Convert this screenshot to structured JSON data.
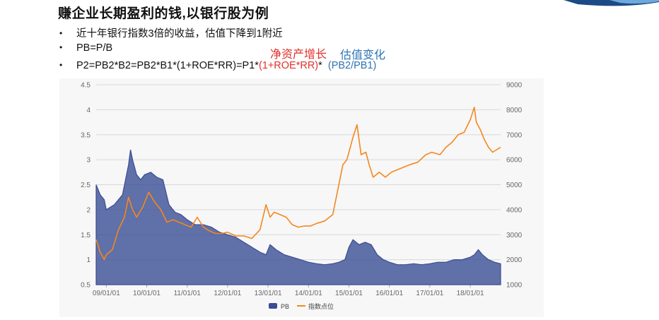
{
  "slide": {
    "title": "赚企业长期盈利的钱,以银行股为例",
    "bullet_symbol": "•",
    "bullets": [
      "近十年银行指数3倍的收益，估值下降到1附近",
      "PB=P/B"
    ],
    "formula": {
      "prefix": "P2=PB2*B2=PB2*B1*(1+ROE*RR)=P1*",
      "growth_term": "(1+ROE*RR)",
      "star": "*",
      "valuation_term": "(PB2/PB1)"
    },
    "annotation_growth": "净资产增长",
    "annotation_valuation": "估值变化"
  },
  "colors": {
    "pb_area": "#3a4d94",
    "index_line": "#f5871f",
    "grid": "#d8d8d8",
    "panel_bg": "#f7f7f7",
    "red_text": "#e0312c",
    "blue_text": "#2e75b6"
  },
  "chart_data": {
    "type": "area",
    "title": "",
    "grid": true,
    "legend_position": "bottom-center",
    "x_ticks": [
      "09/01/01",
      "10/01/01",
      "11/01/01",
      "12/01/01",
      "13/01/01",
      "14/01/01",
      "15/01/01",
      "16/01/01",
      "17/01/01",
      "18/01/01"
    ],
    "x_range": [
      2008.75,
      2018.75
    ],
    "y_left": {
      "ticks": [
        "0.5",
        "1",
        "1.5",
        "2",
        "2.5",
        "3",
        "3.5",
        "4",
        "4.5"
      ],
      "range": [
        0.5,
        4.5
      ]
    },
    "y_right": {
      "ticks": [
        "1000",
        "2000",
        "3000",
        "4000",
        "5000",
        "6000",
        "7000",
        "8000",
        "9000"
      ],
      "range": [
        1000,
        9000
      ]
    },
    "series": [
      {
        "name": "PB",
        "type": "area",
        "axis": "left",
        "x": [
          2008.75,
          2008.85,
          2008.95,
          2009.0,
          2009.2,
          2009.4,
          2009.55,
          2009.6,
          2009.65,
          2009.75,
          2009.85,
          2009.95,
          2010.1,
          2010.25,
          2010.4,
          2010.55,
          2010.7,
          2010.85,
          2011.0,
          2011.2,
          2011.4,
          2011.6,
          2011.8,
          2012.0,
          2012.2,
          2012.4,
          2012.6,
          2012.8,
          2012.95,
          2013.05,
          2013.2,
          2013.4,
          2013.6,
          2013.8,
          2014.0,
          2014.2,
          2014.4,
          2014.6,
          2014.75,
          2014.9,
          2015.0,
          2015.1,
          2015.25,
          2015.4,
          2015.55,
          2015.7,
          2015.85,
          2016.0,
          2016.2,
          2016.4,
          2016.6,
          2016.8,
          2017.0,
          2017.2,
          2017.4,
          2017.6,
          2017.8,
          2018.0,
          2018.1,
          2018.2,
          2018.3,
          2018.45,
          2018.6,
          2018.75
        ],
        "values": [
          2.5,
          2.3,
          2.2,
          2.0,
          2.1,
          2.3,
          2.9,
          3.2,
          3.0,
          2.7,
          2.6,
          2.7,
          2.75,
          2.65,
          2.6,
          2.1,
          1.95,
          1.9,
          1.8,
          1.7,
          1.7,
          1.65,
          1.55,
          1.5,
          1.45,
          1.35,
          1.25,
          1.15,
          1.1,
          1.3,
          1.2,
          1.1,
          1.05,
          1.0,
          0.95,
          0.92,
          0.9,
          0.92,
          0.95,
          1.0,
          1.25,
          1.4,
          1.3,
          1.35,
          1.3,
          1.1,
          1.0,
          0.95,
          0.9,
          0.9,
          0.92,
          0.9,
          0.92,
          0.95,
          0.95,
          1.0,
          1.0,
          1.05,
          1.1,
          1.2,
          1.1,
          1.0,
          0.95,
          0.92
        ]
      },
      {
        "name": "指数点位",
        "type": "line",
        "axis": "right",
        "x": [
          2008.75,
          2008.85,
          2008.95,
          2009.0,
          2009.15,
          2009.3,
          2009.45,
          2009.55,
          2009.65,
          2009.75,
          2009.9,
          2010.05,
          2010.2,
          2010.35,
          2010.5,
          2010.65,
          2010.8,
          2010.95,
          2011.1,
          2011.25,
          2011.4,
          2011.55,
          2011.7,
          2011.85,
          2012.0,
          2012.2,
          2012.4,
          2012.6,
          2012.8,
          2012.95,
          2013.05,
          2013.15,
          2013.3,
          2013.45,
          2013.6,
          2013.75,
          2013.9,
          2014.05,
          2014.2,
          2014.4,
          2014.6,
          2014.75,
          2014.85,
          2014.95,
          2015.0,
          2015.1,
          2015.2,
          2015.3,
          2015.42,
          2015.5,
          2015.6,
          2015.75,
          2015.9,
          2016.05,
          2016.2,
          2016.35,
          2016.5,
          2016.7,
          2016.9,
          2017.05,
          2017.25,
          2017.4,
          2017.55,
          2017.7,
          2017.85,
          2018.0,
          2018.1,
          2018.15,
          2018.25,
          2018.35,
          2018.45,
          2018.55,
          2018.65,
          2018.75
        ],
        "values": [
          2800,
          2300,
          2000,
          2200,
          2400,
          3200,
          3700,
          4500,
          4000,
          3700,
          4100,
          4700,
          4300,
          4000,
          3500,
          3600,
          3500,
          3400,
          3300,
          3700,
          3300,
          3150,
          3050,
          3050,
          3100,
          2950,
          2950,
          2850,
          3200,
          4200,
          3700,
          3900,
          3800,
          3700,
          3400,
          3300,
          3350,
          3350,
          3450,
          3550,
          3800,
          5000,
          5800,
          6000,
          6300,
          6900,
          7400,
          6200,
          6300,
          5800,
          5300,
          5500,
          5300,
          5500,
          5600,
          5700,
          5800,
          5900,
          6200,
          6300,
          6200,
          6500,
          6700,
          7000,
          7100,
          7600,
          8100,
          7500,
          7200,
          6800,
          6500,
          6300,
          6400,
          6500
        ]
      }
    ]
  }
}
